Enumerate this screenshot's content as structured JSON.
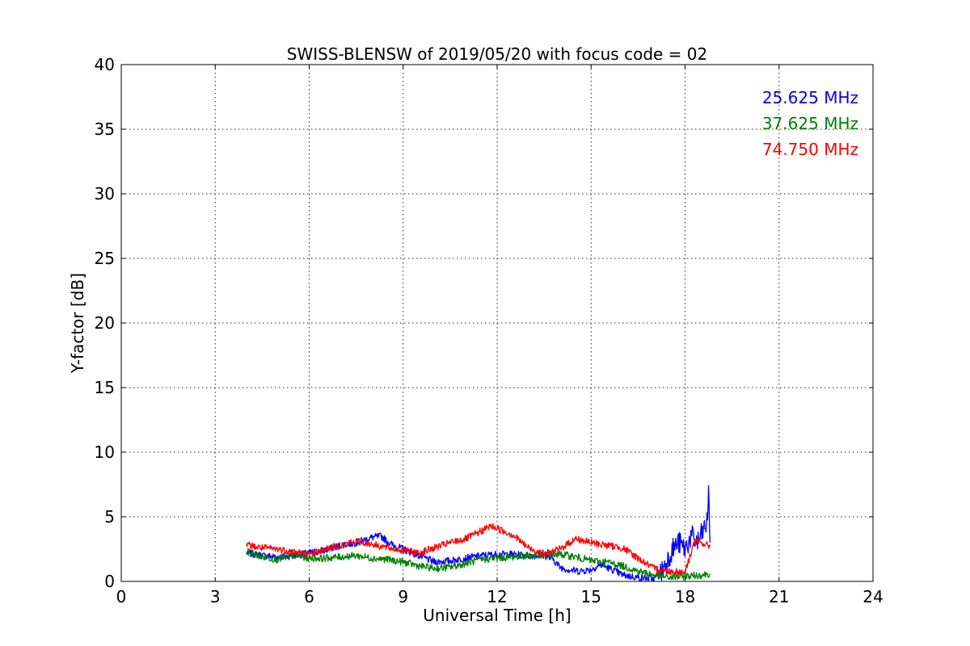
{
  "chart_data": {
    "type": "line",
    "title": "SWISS-BLENSW of 2019/05/20 with focus code = 02",
    "xlabel": "Universal Time [h]",
    "ylabel": "Y-factor [dB]",
    "xlim": [
      0,
      24
    ],
    "ylim": [
      0,
      40
    ],
    "xticks": [
      "0",
      "3",
      "6",
      "9",
      "12",
      "15",
      "18",
      "21",
      "24"
    ],
    "yticks": [
      "0",
      "5",
      "10",
      "15",
      "20",
      "25",
      "30",
      "35",
      "40"
    ],
    "grid": true,
    "legend_placement": "top-right",
    "series": [
      {
        "name": "25.625 MHz",
        "color": "#0000ff",
        "x": [
          4.0,
          4.5,
          5.0,
          5.5,
          6.0,
          6.5,
          7.0,
          7.5,
          8.0,
          8.3,
          8.6,
          9.0,
          9.5,
          10.0,
          10.5,
          11.0,
          11.5,
          12.0,
          12.5,
          13.0,
          13.5,
          13.8,
          14.0,
          14.3,
          14.6,
          15.0,
          15.3,
          15.6,
          16.0,
          16.5,
          17.0,
          17.2,
          17.4,
          17.6,
          17.8,
          18.0,
          18.2,
          18.4,
          18.6,
          18.7,
          18.75,
          18.8
        ],
        "y": [
          2.2,
          2.0,
          1.9,
          2.0,
          2.2,
          2.4,
          2.8,
          3.0,
          3.4,
          3.5,
          2.9,
          2.5,
          2.0,
          1.5,
          1.6,
          1.8,
          2.0,
          2.1,
          2.1,
          2.0,
          2.0,
          1.7,
          1.1,
          0.9,
          0.8,
          0.9,
          1.3,
          1.0,
          0.5,
          0.3,
          0.2,
          0.5,
          1.5,
          2.5,
          3.0,
          2.5,
          3.5,
          3.0,
          4.0,
          4.5,
          6.8,
          3.0
        ]
      },
      {
        "name": "37.625 MHz",
        "color": "#008000",
        "x": [
          4.0,
          4.5,
          5.0,
          5.5,
          6.0,
          6.5,
          7.0,
          7.5,
          8.0,
          8.5,
          9.0,
          9.5,
          10.0,
          10.5,
          11.0,
          11.5,
          12.0,
          12.5,
          13.0,
          13.5,
          14.0,
          14.5,
          15.0,
          15.5,
          16.0,
          16.5,
          17.0,
          17.5,
          18.0,
          18.5,
          18.8
        ],
        "y": [
          2.3,
          1.9,
          1.7,
          2.0,
          1.8,
          1.8,
          1.9,
          2.0,
          1.8,
          1.7,
          1.5,
          1.2,
          1.0,
          1.1,
          1.4,
          1.7,
          1.8,
          1.9,
          2.0,
          2.0,
          2.1,
          1.9,
          1.6,
          1.5,
          1.2,
          0.8,
          0.5,
          0.3,
          0.4,
          0.5,
          0.6
        ]
      },
      {
        "name": "74.750 MHz",
        "color": "#ff0000",
        "x": [
          4.0,
          4.5,
          5.0,
          5.5,
          6.0,
          6.5,
          7.0,
          7.5,
          8.0,
          8.5,
          9.0,
          9.5,
          10.0,
          10.5,
          11.0,
          11.5,
          11.8,
          12.0,
          12.5,
          13.0,
          13.5,
          14.0,
          14.5,
          15.0,
          15.5,
          16.0,
          16.5,
          17.0,
          17.5,
          18.0,
          18.3,
          18.5,
          18.8
        ],
        "y": [
          2.8,
          2.6,
          2.5,
          2.3,
          2.1,
          2.5,
          2.8,
          3.1,
          2.9,
          2.6,
          2.4,
          2.2,
          2.6,
          3.0,
          3.3,
          3.9,
          4.3,
          4.1,
          3.6,
          2.6,
          2.1,
          2.5,
          3.3,
          3.0,
          2.8,
          2.6,
          1.8,
          1.0,
          0.8,
          0.7,
          3.1,
          3.0,
          2.7
        ]
      }
    ]
  }
}
